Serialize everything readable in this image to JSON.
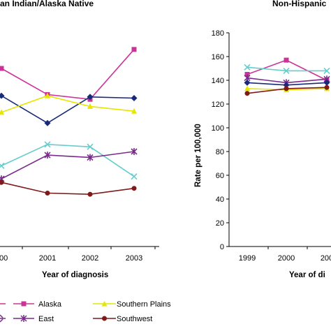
{
  "chart_data": [
    {
      "type": "line",
      "title": "an Indian/Alaska Native",
      "xlabel": "Year of diagnosis",
      "ylabel": "",
      "categories": [
        "000",
        "2001",
        "2002",
        "2003"
      ],
      "ylim": [
        0,
        180
      ],
      "series": [
        {
          "name": "Alaska",
          "color": "#cc3399",
          "marker": "square",
          "values": [
            150,
            128,
            124,
            166
          ]
        },
        {
          "name": "",
          "color": "#1a2a7a",
          "marker": "diamond",
          "values": [
            127,
            104,
            126,
            125
          ]
        },
        {
          "name": "Southern Plains",
          "color": "#e6e600",
          "marker": "triangle",
          "values": [
            113,
            127,
            118,
            114
          ]
        },
        {
          "name": "",
          "color": "#66cccc",
          "marker": "x",
          "values": [
            68,
            86,
            84,
            59
          ]
        },
        {
          "name": "East",
          "color": "#7a2a8a",
          "marker": "star",
          "values": [
            57,
            77,
            75,
            80
          ]
        },
        {
          "name": "Southwest",
          "color": "#801a1a",
          "marker": "circle",
          "values": [
            54,
            45,
            44,
            49
          ]
        }
      ]
    },
    {
      "type": "line",
      "title": "Non-Hispanic",
      "xlabel": "Year of di",
      "ylabel": "Rate per 100,000",
      "categories": [
        "1999",
        "2000",
        "200"
      ],
      "yticks": [
        "0",
        "20",
        "40",
        "60",
        "80",
        "100",
        "120",
        "140",
        "160",
        "180"
      ],
      "ylim": [
        0,
        180
      ],
      "series": [
        {
          "name": "Alaska",
          "color": "#cc3399",
          "marker": "square",
          "values": [
            145,
            157,
            140
          ]
        },
        {
          "name": "",
          "color": "#66cccc",
          "marker": "x",
          "values": [
            151,
            148,
            148
          ]
        },
        {
          "name": "East",
          "color": "#7a2a8a",
          "marker": "star",
          "values": [
            142,
            138,
            141
          ]
        },
        {
          "name": "",
          "color": "#1a2a7a",
          "marker": "diamond",
          "values": [
            138,
            136,
            138
          ]
        },
        {
          "name": "Southern Plains",
          "color": "#e6e600",
          "marker": "triangle",
          "values": [
            133,
            132,
            133
          ]
        },
        {
          "name": "Southwest",
          "color": "#801a1a",
          "marker": "circle",
          "values": [
            129,
            133,
            134
          ]
        }
      ]
    }
  ],
  "legend": {
    "items": [
      {
        "label": "Alaska",
        "color": "#cc3399",
        "marker": "square"
      },
      {
        "label": "Southern Plains",
        "color": "#e6e600",
        "marker": "triangle"
      },
      {
        "label": "East",
        "color": "#7a2a8a",
        "marker": "star"
      },
      {
        "label": "Southwest",
        "color": "#801a1a",
        "marker": "circle"
      }
    ]
  }
}
